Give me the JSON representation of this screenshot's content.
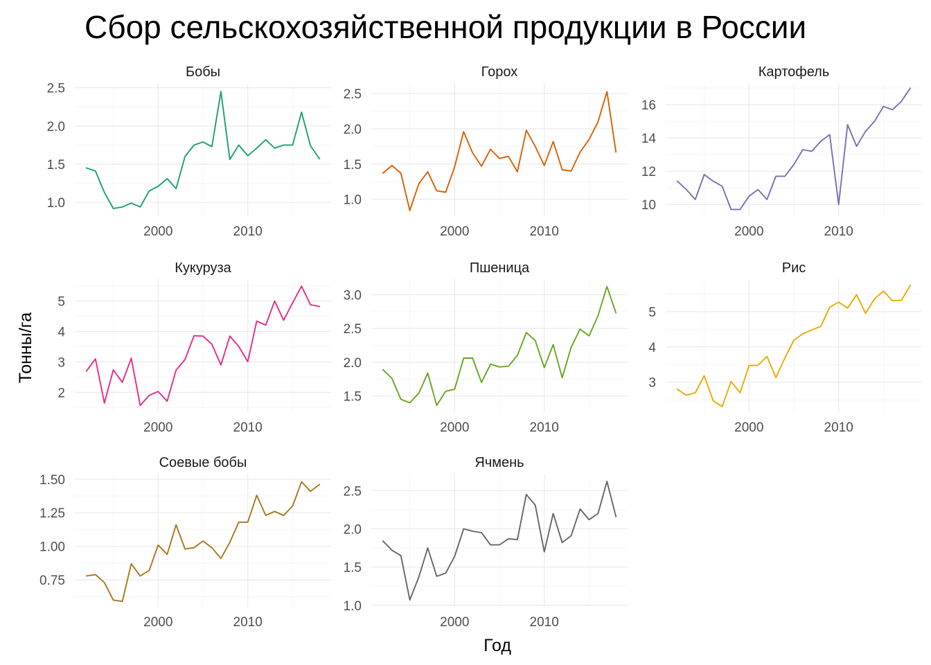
{
  "chart_data": {
    "type": "line",
    "title": "Сбор сельскохозяйственной продукции в России",
    "xlabel": "Год",
    "ylabel": "Тонны/га",
    "x": [
      1992,
      1993,
      1994,
      1995,
      1996,
      1997,
      1998,
      1999,
      2000,
      2001,
      2002,
      2003,
      2004,
      2005,
      2006,
      2007,
      2008,
      2009,
      2010,
      2011,
      2012,
      2013,
      2014,
      2015,
      2016,
      2017,
      2018
    ],
    "x_ticks": [
      2000,
      2010
    ],
    "x_tick_labels": [
      "2000",
      "2010"
    ],
    "xlim": [
      1990.7,
      2019.3
    ],
    "grid": true,
    "panels": [
      {
        "name": "Бобы",
        "color": "#1b9e77",
        "ylim": [
          0.82,
          2.56
        ],
        "y_ticks": [
          1.0,
          1.5,
          2.0,
          2.5
        ],
        "y_tick_labels": [
          "1.0",
          "1.5",
          "2.0",
          "2.5"
        ],
        "values": [
          1.45,
          1.41,
          1.13,
          0.92,
          0.94,
          0.99,
          0.94,
          1.15,
          1.21,
          1.31,
          1.18,
          1.6,
          1.75,
          1.79,
          1.73,
          2.45,
          1.56,
          1.75,
          1.61,
          1.71,
          1.82,
          1.71,
          1.75,
          1.75,
          2.18,
          1.74,
          1.57
        ]
      },
      {
        "name": "Горох",
        "color": "#d95f02",
        "ylim": [
          0.76,
          2.65
        ],
        "y_ticks": [
          1.0,
          1.5,
          2.0,
          2.5
        ],
        "y_tick_labels": [
          "1.0",
          "1.5",
          "2.0",
          "2.5"
        ],
        "values": [
          1.37,
          1.48,
          1.37,
          0.84,
          1.22,
          1.39,
          1.12,
          1.1,
          1.46,
          1.96,
          1.66,
          1.47,
          1.71,
          1.58,
          1.61,
          1.39,
          1.98,
          1.75,
          1.48,
          1.82,
          1.42,
          1.4,
          1.67,
          1.85,
          2.1,
          2.53,
          1.67
        ]
      },
      {
        "name": "Картофель",
        "color": "#7570b3",
        "ylim": [
          9.3,
          17.3
        ],
        "y_ticks": [
          10,
          12,
          14,
          16
        ],
        "y_tick_labels": [
          "10",
          "12",
          "14",
          "16"
        ],
        "values": [
          11.4,
          10.9,
          10.3,
          11.8,
          11.4,
          11.1,
          9.7,
          9.7,
          10.5,
          10.9,
          10.3,
          11.7,
          11.7,
          12.4,
          13.3,
          13.2,
          13.8,
          14.2,
          10.0,
          14.8,
          13.5,
          14.4,
          15.0,
          15.9,
          15.7,
          16.2,
          17.0
        ]
      },
      {
        "name": "Кукуруза",
        "color": "#e7298a",
        "ylim": [
          1.35,
          5.72
        ],
        "y_ticks": [
          2,
          3,
          4,
          5
        ],
        "y_tick_labels": [
          "2",
          "3",
          "4",
          "5"
        ],
        "values": [
          2.7,
          3.1,
          1.65,
          2.74,
          2.33,
          3.12,
          1.57,
          1.9,
          2.03,
          1.71,
          2.73,
          3.08,
          3.86,
          3.85,
          3.58,
          2.9,
          3.85,
          3.51,
          3.01,
          4.34,
          4.21,
          5.0,
          4.37,
          4.94,
          5.49,
          4.88,
          4.82
        ]
      },
      {
        "name": "Пшеница",
        "color": "#66a61e",
        "ylim": [
          1.26,
          3.23
        ],
        "y_ticks": [
          1.5,
          2.0,
          2.5,
          3.0
        ],
        "y_tick_labels": [
          "1.5",
          "2.0",
          "2.5",
          "3.0"
        ],
        "values": [
          1.89,
          1.76,
          1.45,
          1.4,
          1.54,
          1.84,
          1.36,
          1.57,
          1.6,
          2.06,
          2.06,
          1.7,
          1.97,
          1.93,
          1.94,
          2.1,
          2.44,
          2.32,
          1.92,
          2.26,
          1.77,
          2.22,
          2.49,
          2.39,
          2.69,
          3.12,
          2.73
        ]
      },
      {
        "name": "Рис",
        "color": "#e6ab02",
        "ylim": [
          2.15,
          5.92
        ],
        "y_ticks": [
          3,
          4,
          5
        ],
        "y_tick_labels": [
          "3",
          "4",
          "5"
        ],
        "values": [
          2.8,
          2.63,
          2.7,
          3.18,
          2.47,
          2.31,
          3.02,
          2.7,
          3.47,
          3.48,
          3.73,
          3.13,
          3.69,
          4.19,
          4.37,
          4.48,
          4.58,
          5.12,
          5.27,
          5.1,
          5.48,
          4.95,
          5.36,
          5.58,
          5.31,
          5.32,
          5.75
        ]
      },
      {
        "name": "Соевые бобы",
        "color": "#a6761d",
        "ylim": [
          0.55,
          1.54
        ],
        "y_ticks": [
          0.75,
          1.0,
          1.25,
          1.5
        ],
        "y_tick_labels": [
          "0.75",
          "1.00",
          "1.25",
          "1.50"
        ],
        "values": [
          0.78,
          0.79,
          0.73,
          0.6,
          0.59,
          0.87,
          0.78,
          0.82,
          1.01,
          0.94,
          1.16,
          0.98,
          0.99,
          1.04,
          0.99,
          0.91,
          1.03,
          1.18,
          1.18,
          1.38,
          1.23,
          1.26,
          1.23,
          1.3,
          1.48,
          1.41,
          1.46
        ]
      },
      {
        "name": "Ячмень",
        "color": "#666666",
        "ylim": [
          0.98,
          2.72
        ],
        "y_ticks": [
          1.0,
          1.5,
          2.0,
          2.5
        ],
        "y_tick_labels": [
          "1.0",
          "1.5",
          "2.0",
          "2.5"
        ],
        "values": [
          1.84,
          1.72,
          1.65,
          1.07,
          1.37,
          1.75,
          1.38,
          1.42,
          1.64,
          2.0,
          1.97,
          1.95,
          1.79,
          1.79,
          1.87,
          1.86,
          2.45,
          2.31,
          1.7,
          2.2,
          1.82,
          1.91,
          2.26,
          2.12,
          2.2,
          2.62,
          2.16
        ]
      }
    ]
  }
}
